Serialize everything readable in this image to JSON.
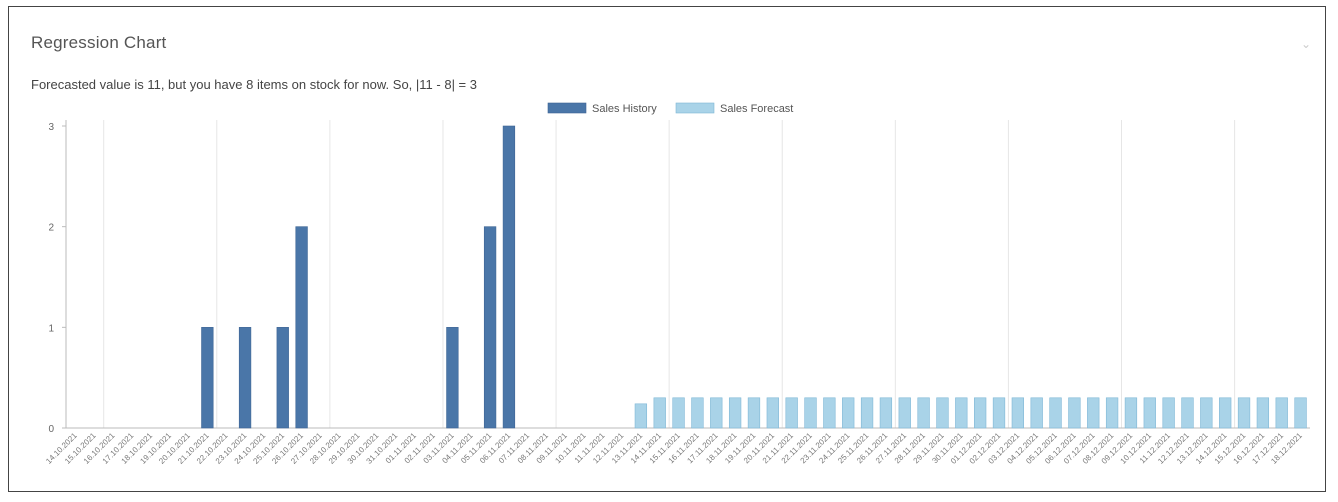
{
  "panel": {
    "title": "Regression Chart",
    "menu_icon": "chevron-down-icon"
  },
  "chart_data": {
    "type": "bar",
    "title": "",
    "subtitle": "Forecasted value is 11, but you have 8 items on stock for now. So, |11 - 8| = 3",
    "xlabel": "",
    "ylabel": "",
    "ylim": [
      0,
      3
    ],
    "yticks": [
      0,
      1,
      2,
      3
    ],
    "grid": "vertical",
    "legend": "top-center",
    "colors": {
      "Sales History": "#4a76a8",
      "Sales Forecast": "#a9d3e8"
    },
    "categories": [
      "14.10.2021",
      "15.10.2021",
      "16.10.2021",
      "17.10.2021",
      "18.10.2021",
      "19.10.2021",
      "20.10.2021",
      "21.10.2021",
      "22.10.2021",
      "23.10.2021",
      "24.10.2021",
      "25.10.2021",
      "26.10.2021",
      "27.10.2021",
      "28.10.2021",
      "29.10.2021",
      "30.10.2021",
      "31.10.2021",
      "01.11.2021",
      "02.11.2021",
      "03.11.2021",
      "04.11.2021",
      "05.11.2021",
      "06.11.2021",
      "07.11.2021",
      "08.11.2021",
      "09.11.2021",
      "10.11.2021",
      "11.11.2021",
      "12.11.2021",
      "13.11.2021",
      "14.11.2021",
      "15.11.2021",
      "16.11.2021",
      "17.11.2021",
      "18.11.2021",
      "19.11.2021",
      "20.11.2021",
      "21.11.2021",
      "22.11.2021",
      "23.11.2021",
      "24.11.2021",
      "25.11.2021",
      "26.11.2021",
      "27.11.2021",
      "28.11.2021",
      "29.11.2021",
      "30.11.2021",
      "01.12.2021",
      "02.12.2021",
      "03.12.2021",
      "04.12.2021",
      "05.12.2021",
      "06.12.2021",
      "07.12.2021",
      "08.12.2021",
      "09.12.2021",
      "10.12.2021",
      "11.12.2021",
      "12.12.2021",
      "13.12.2021",
      "14.12.2021",
      "15.12.2021",
      "16.12.2021",
      "17.12.2021",
      "18.12.2021"
    ],
    "series": [
      {
        "name": "Sales History",
        "values": [
          0,
          0,
          0,
          0,
          0,
          0,
          0,
          1,
          0,
          1,
          0,
          1,
          2,
          0,
          0,
          0,
          0,
          0,
          0,
          0,
          1,
          0,
          2,
          3,
          0,
          0,
          0,
          0,
          0,
          0,
          0,
          0,
          0,
          0,
          0,
          0,
          0,
          0,
          0,
          0,
          0,
          0,
          0,
          0,
          0,
          0,
          0,
          0,
          0,
          0,
          0,
          0,
          0,
          0,
          0,
          0,
          0,
          0,
          0,
          0,
          0,
          0,
          0,
          0,
          0,
          0
        ]
      },
      {
        "name": "Sales Forecast",
        "values": [
          0,
          0,
          0,
          0,
          0,
          0,
          0,
          0,
          0,
          0,
          0,
          0,
          0,
          0,
          0,
          0,
          0,
          0,
          0,
          0,
          0,
          0,
          0,
          0,
          0,
          0,
          0,
          0,
          0,
          0,
          0.24,
          0.3,
          0.3,
          0.3,
          0.3,
          0.3,
          0.3,
          0.3,
          0.3,
          0.3,
          0.3,
          0.3,
          0.3,
          0.3,
          0.3,
          0.3,
          0.3,
          0.3,
          0.3,
          0.3,
          0.3,
          0.3,
          0.3,
          0.3,
          0.3,
          0.3,
          0.3,
          0.3,
          0.3,
          0.3,
          0.3,
          0.3,
          0.3,
          0.3,
          0.3,
          0.3
        ]
      }
    ]
  }
}
